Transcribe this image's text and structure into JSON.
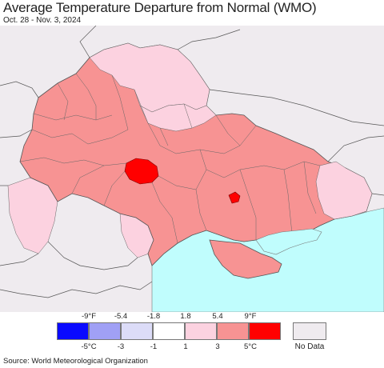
{
  "title": "Average Temperature Departure from Normal (WMO)",
  "subtitle": "Oct. 28 - Nov. 3, 2024",
  "source": "Source: World Meteorological Organization",
  "legend": {
    "fahrenheit_ticks": [
      "-9°F",
      "-5.4",
      "-1.8",
      "1.8",
      "5.4",
      "9°F"
    ],
    "celsius_ticks": [
      "-5°C",
      "-3",
      "-1",
      "1",
      "3",
      "5°C"
    ],
    "colors": [
      "#0a0aff",
      "#a0a0f5",
      "#dcdcf8",
      "#ffffff",
      "#fcd2e0",
      "#f79393",
      "#ff0000"
    ],
    "no_data_label": "No Data",
    "no_data_color": "#efebef"
  },
  "map": {
    "colors": {
      "background": "#efebef",
      "sea": "#c0fdfd",
      "border": "#555555",
      "warm_1_3": "#fcd2e0",
      "warm_3_5": "#f79393",
      "hot_5_plus": "#ff0000"
    }
  }
}
